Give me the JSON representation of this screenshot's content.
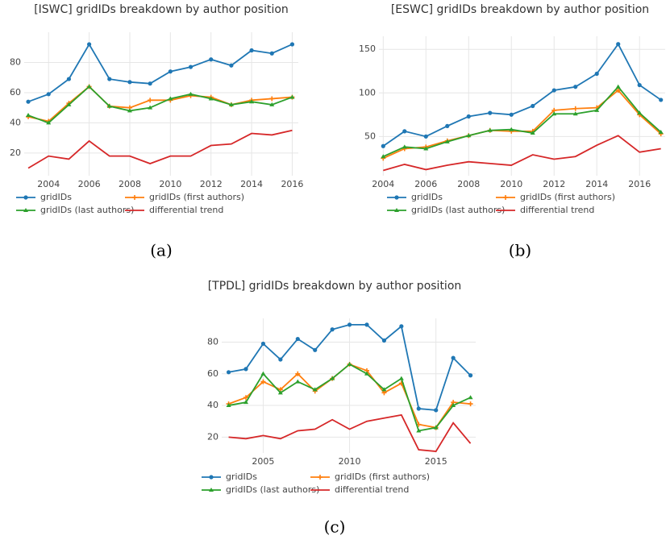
{
  "chart_data": [
    {
      "type": "line",
      "title": "[ISWC] gridIDs breakdown by author position",
      "caption": "(a)",
      "x": [
        2003,
        2004,
        2005,
        2006,
        2007,
        2008,
        2009,
        2010,
        2011,
        2012,
        2013,
        2014,
        2015,
        2016
      ],
      "series": [
        {
          "name": "gridIDs",
          "color": "#1f77b4",
          "marker": "circle",
          "values": [
            54,
            59,
            69,
            92,
            69,
            67,
            66,
            74,
            77,
            82,
            78,
            88,
            86,
            92
          ]
        },
        {
          "name": "gridIDs (first authors)",
          "color": "#ff7f0e",
          "marker": "diamond",
          "values": [
            44,
            41,
            53,
            64,
            51,
            50,
            55,
            55,
            58,
            57,
            52,
            55,
            56,
            57
          ]
        },
        {
          "name": "gridIDs (last authors)",
          "color": "#2ca02c",
          "marker": "triangle",
          "values": [
            45,
            40,
            52,
            64,
            51,
            48,
            50,
            56,
            59,
            56,
            52,
            54,
            52,
            57
          ]
        },
        {
          "name": "differential trend",
          "color": "#d62728",
          "marker": "none",
          "values": [
            10,
            18,
            16,
            28,
            18,
            18,
            13,
            18,
            18,
            25,
            26,
            33,
            32,
            35
          ]
        }
      ],
      "xlim": [
        2002.8,
        2016.3
      ],
      "xticks": [
        2004,
        2006,
        2008,
        2010,
        2012,
        2014,
        2016
      ],
      "ylim": [
        5,
        100
      ],
      "yticks": [
        20,
        40,
        60,
        80
      ],
      "grid": true
    },
    {
      "type": "line",
      "title": "[ESWC] gridIDs breakdown by author position",
      "caption": "(b)",
      "x": [
        2004,
        2005,
        2006,
        2007,
        2008,
        2009,
        2010,
        2011,
        2012,
        2013,
        2014,
        2015,
        2016,
        2017
      ],
      "series": [
        {
          "name": "gridIDs",
          "color": "#1f77b4",
          "marker": "circle",
          "values": [
            39,
            56,
            50,
            62,
            73,
            77,
            75,
            85,
            103,
            107,
            122,
            156,
            109,
            92
          ]
        },
        {
          "name": "gridIDs (first authors)",
          "color": "#ff7f0e",
          "marker": "diamond",
          "values": [
            25,
            36,
            38,
            45,
            51,
            57,
            56,
            56,
            80,
            82,
            83,
            103,
            75,
            53
          ]
        },
        {
          "name": "gridIDs (last authors)",
          "color": "#2ca02c",
          "marker": "triangle",
          "values": [
            27,
            38,
            36,
            44,
            51,
            57,
            58,
            54,
            76,
            76,
            80,
            107,
            77,
            55
          ]
        },
        {
          "name": "differential trend",
          "color": "#d62728",
          "marker": "none",
          "values": [
            11,
            18,
            12,
            17,
            21,
            19,
            17,
            29,
            24,
            27,
            40,
            51,
            32,
            36
          ]
        }
      ],
      "xlim": [
        2003.8,
        2017.2
      ],
      "xticks": [
        2004,
        2006,
        2008,
        2010,
        2012,
        2014,
        2016
      ],
      "ylim": [
        5,
        165
      ],
      "yticks": [
        50,
        100,
        150
      ],
      "grid": true
    },
    {
      "type": "line",
      "title": "[TPDL] gridIDs breakdown by author position",
      "caption": "(c)",
      "x": [
        2003,
        2004,
        2005,
        2006,
        2007,
        2008,
        2009,
        2010,
        2011,
        2012,
        2013,
        2014,
        2015,
        2016,
        2017
      ],
      "series": [
        {
          "name": "gridIDs",
          "color": "#1f77b4",
          "marker": "circle",
          "values": [
            61,
            63,
            79,
            69,
            82,
            75,
            88,
            91,
            91,
            81,
            90,
            38,
            37,
            70,
            59
          ]
        },
        {
          "name": "gridIDs (first authors)",
          "color": "#ff7f0e",
          "marker": "diamond",
          "values": [
            41,
            45,
            55,
            50,
            60,
            49,
            57,
            66,
            62,
            48,
            54,
            28,
            26,
            42,
            41
          ]
        },
        {
          "name": "gridIDs (last authors)",
          "color": "#2ca02c",
          "marker": "triangle",
          "values": [
            40,
            42,
            60,
            48,
            55,
            50,
            57,
            66,
            60,
            50,
            57,
            24,
            26,
            40,
            45
          ]
        },
        {
          "name": "differential trend",
          "color": "#d62728",
          "marker": "none",
          "values": [
            20,
            19,
            21,
            19,
            24,
            25,
            31,
            25,
            30,
            32,
            34,
            12,
            11,
            29,
            16
          ]
        }
      ],
      "xlim": [
        2002.6,
        2017.3
      ],
      "xticks": [
        2005,
        2010,
        2015
      ],
      "ylim": [
        10,
        95
      ],
      "yticks": [
        20,
        40,
        60,
        80
      ],
      "grid": true
    }
  ]
}
